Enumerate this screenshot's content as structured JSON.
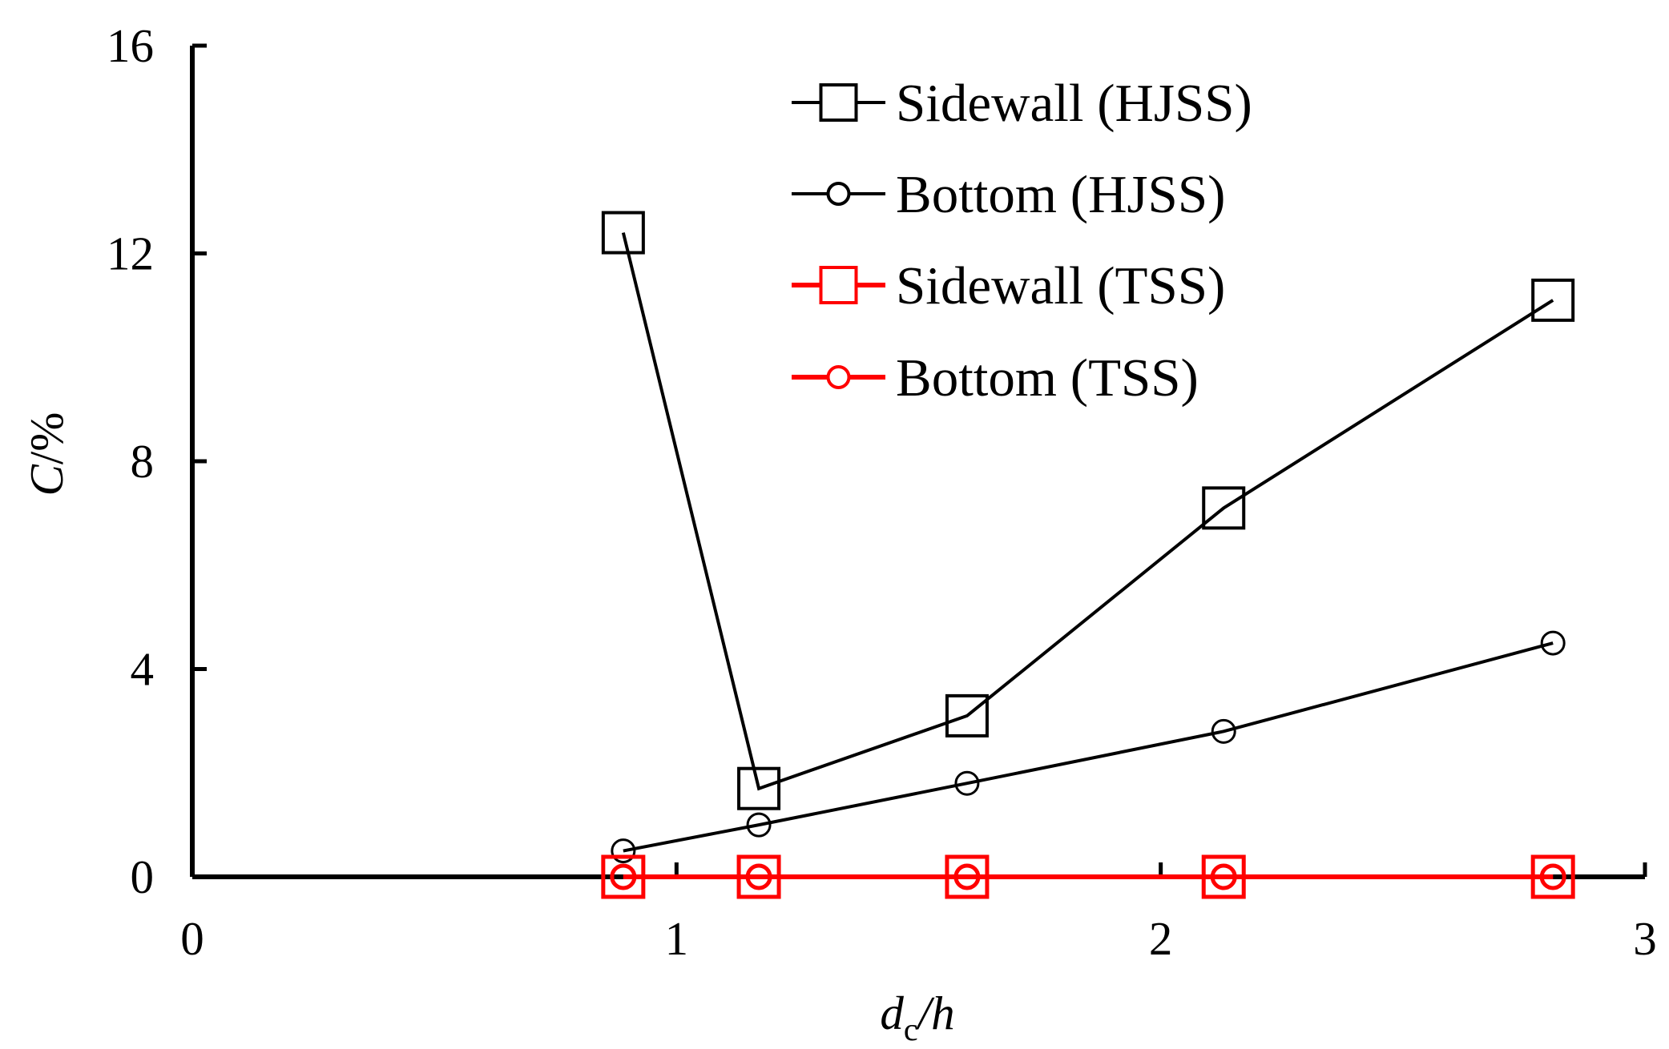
{
  "chart_data": {
    "type": "line",
    "xlabel": {
      "main": "d",
      "sub": "c",
      "rest": "/h"
    },
    "ylabel": {
      "main": "C",
      "rest": "/%"
    },
    "xlim": [
      0,
      3
    ],
    "ylim": [
      0,
      16
    ],
    "x_ticks": [
      0,
      1,
      2,
      3
    ],
    "y_ticks": [
      0,
      4,
      8,
      12,
      16
    ],
    "x_tick_labels": [
      "0",
      "1",
      "2",
      "3"
    ],
    "y_tick_labels": [
      "0",
      "4",
      "8",
      "12",
      "16"
    ],
    "grid": false,
    "legend_position": "top-right",
    "series": [
      {
        "name": "Sidewall (HJSS)",
        "marker": "square",
        "color": "#000000",
        "x": [
          0.89,
          1.17,
          1.6,
          2.13,
          2.81
        ],
        "y": [
          12.4,
          1.7,
          3.1,
          7.1,
          11.1
        ]
      },
      {
        "name": "Bottom (HJSS)",
        "marker": "circle",
        "color": "#000000",
        "x": [
          0.89,
          1.17,
          1.6,
          2.13,
          2.81
        ],
        "y": [
          0.5,
          1.0,
          1.8,
          2.8,
          4.5
        ]
      },
      {
        "name": "Sidewall (TSS)",
        "marker": "square",
        "color": "#ff0000",
        "x": [
          0.89,
          1.17,
          1.6,
          2.13,
          2.81
        ],
        "y": [
          0,
          0,
          0,
          0,
          0
        ]
      },
      {
        "name": "Bottom (TSS)",
        "marker": "circle",
        "color": "#ff0000",
        "x": [
          0.89,
          1.17,
          1.6,
          2.13,
          2.81
        ],
        "y": [
          0,
          0,
          0,
          0,
          0
        ]
      }
    ]
  }
}
